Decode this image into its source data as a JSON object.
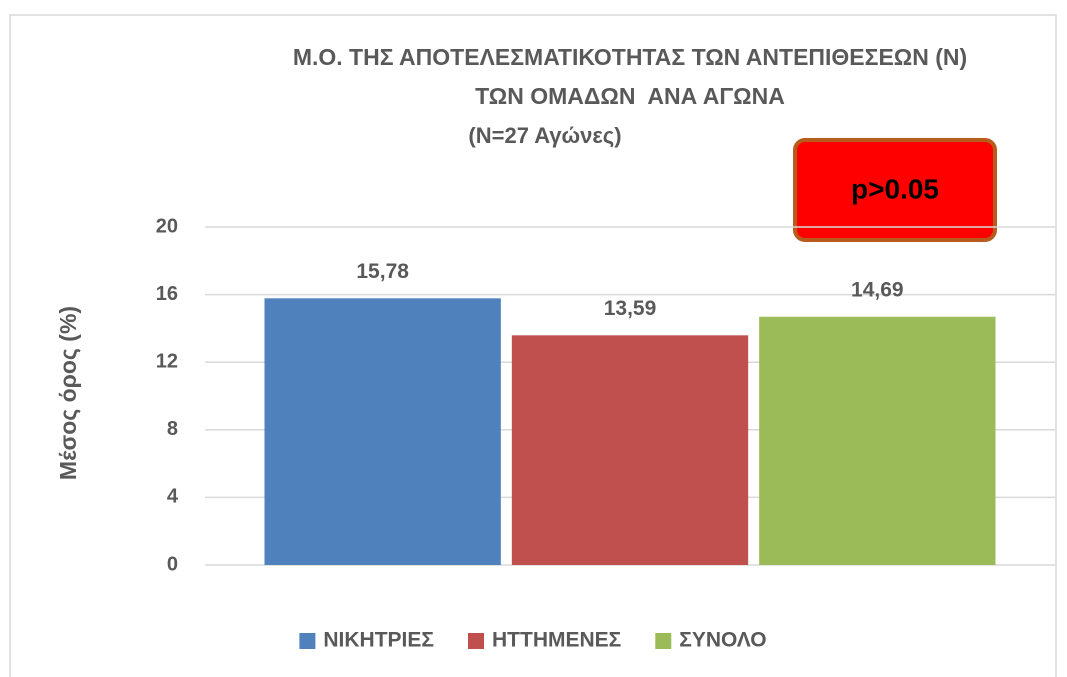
{
  "chart_data": {
    "type": "bar",
    "title": [
      "Μ.Ο. ΤΗΣ ΑΠΟΤΕΛΕΣΜΑΤΙΚΟΤΗΤΑΣ ΤΩΝ ΑΝΤΕΠΙΘΕΣΕΩΝ (Ν)",
      "ΤΩΝ ΟΜΑΔΩΝ  ΑΝΑ ΑΓΩΝΑ"
    ],
    "subtitle": "(Ν=27 Αγώνες)",
    "y_label": "Μέσος όρος (%)",
    "annotations": [
      "p>0.05"
    ],
    "categories": [
      null
    ],
    "series": [
      {
        "name": "ΝΙΚΗΤΡΙΕΣ",
        "color": "#4f81bd",
        "values": [
          15.78
        ],
        "value_labels": [
          "15,78"
        ]
      },
      {
        "name": "ΗΤΤΗΜΕΝΕΣ",
        "color": "#c0504d",
        "values": [
          13.59
        ],
        "value_labels": [
          "13,59"
        ]
      },
      {
        "name": "ΣΥΝΟΛΟ",
        "color": "#9bbb59",
        "values": [
          14.69
        ],
        "value_labels": [
          "14,69"
        ]
      }
    ],
    "ylim": [
      0,
      20
    ],
    "yticks": [
      0,
      4,
      8,
      12,
      16,
      20
    ],
    "grid": true,
    "legend": "bottom"
  }
}
